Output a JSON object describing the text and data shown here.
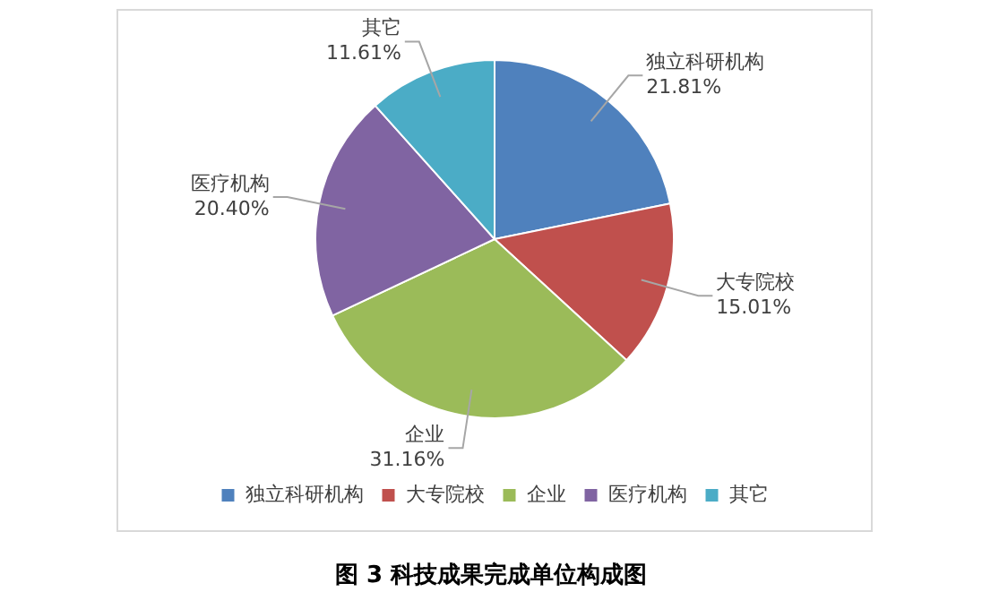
{
  "chart_data": {
    "type": "pie",
    "title": "图 3  科技成果完成单位构成图",
    "categories": [
      "独立科研机构",
      "大专院校",
      "企业",
      "医疗机构",
      "其它"
    ],
    "values": [
      21.81,
      15.01,
      31.16,
      20.4,
      11.61
    ],
    "value_labels": [
      "21.81%",
      "15.01%",
      "31.16%",
      "20.40%",
      "11.61%"
    ],
    "colors": [
      "#4f81bd",
      "#c0504d",
      "#9bbb59",
      "#8064a2",
      "#4bacc6"
    ],
    "legend": "bottom"
  }
}
